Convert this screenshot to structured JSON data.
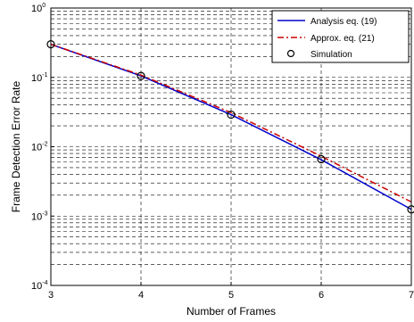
{
  "chart_data": {
    "type": "line",
    "xlabel": "Number of Frames",
    "ylabel": "Frame Detection Error Rate",
    "x": [
      3,
      4,
      5,
      6,
      7
    ],
    "xlim": [
      3,
      7
    ],
    "ylim": [
      0.0001,
      1
    ],
    "yscale": "log",
    "grid": true,
    "legend_position": "top-right",
    "x_tick_labels": [
      "3",
      "4",
      "5",
      "6",
      "7"
    ],
    "y_tick_labels": [
      {
        "base": "10",
        "exp": "-4"
      },
      {
        "base": "10",
        "exp": "-3"
      },
      {
        "base": "10",
        "exp": "-2"
      },
      {
        "base": "10",
        "exp": "-1"
      },
      {
        "base": "10",
        "exp": "0"
      }
    ],
    "series": [
      {
        "name": "Analysis eq. (19)",
        "values": [
          0.3,
          0.105,
          0.029,
          0.0065,
          0.00125
        ],
        "color": "#0000cc",
        "style": "solid"
      },
      {
        "name": "Approx. eq. (21)",
        "values": [
          0.3,
          0.108,
          0.031,
          0.0073,
          0.0016
        ],
        "color": "#cc0000",
        "style": "dashdot"
      },
      {
        "name": "Simulation",
        "values": [
          0.3,
          0.105,
          0.029,
          0.0066,
          0.00125
        ],
        "color": "#000000",
        "style": "marker-circle"
      }
    ]
  }
}
